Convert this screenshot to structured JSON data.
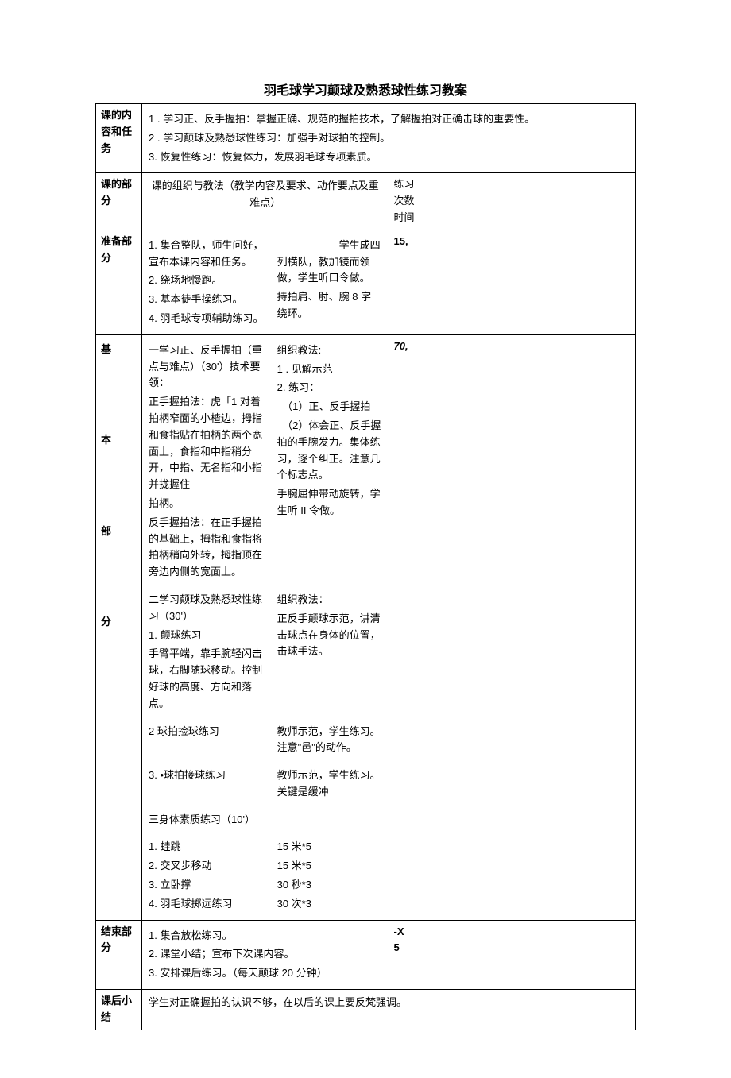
{
  "title": "羽毛球学习颠球及熟悉球性练习教案",
  "row_labels": {
    "task": "课的内容和任务",
    "part": "课的部分",
    "prep": "准备部分",
    "main": "基\n\n\n\n本\n\n\n\n部\n\n\n\n分",
    "end": "结束部分",
    "summary": "课后小结"
  },
  "header": {
    "center": "课的组织与教法（教学内容及要求、动作要点及重难点）",
    "right_lines": [
      "练习",
      "次数",
      "时间"
    ]
  },
  "task": {
    "lines": [
      "1           . 学习正、反手握拍：掌握正确、规范的握拍技术，了解握拍对正确击球的重要性。",
      "2 . 学习颠球及熟悉球性练习：加强手对球拍的控制。",
      "3. 恢复性练习：恢复体力，发展羽毛球专项素质。"
    ]
  },
  "prep": {
    "time": "15,",
    "left": [
      "1. 集合整队，师生问好，宣布本课内容和任务。",
      "2. 绕场地慢跑。",
      "3. 基本徒手操练习。",
      "",
      "4. 羽毛球专项辅助练习。"
    ],
    "right": [
      "",
      "",
      "　　　　　　学生成四列横队，教加镜而领做，学生听口令做。",
      "持拍肩、肘、腕 8 字绕环。"
    ]
  },
  "main": {
    "time": "70,",
    "blocks": [
      {
        "left": [
          "一学习正、反手握拍（重点与难点）（30'）技术要领：",
          "正手握拍法：虎「1 对着拍柄窄面的小楂边，拇指和食指贴在拍柄的两个宽面上，食指和中指稍分开，中指、无名指和小指并拢握住",
          "拍柄。",
          "反手握拍法：在正手握拍的基础上，拇指和食指将拍柄稍向外转，拇指顶在旁边内侧的宽面上。"
        ],
        "right": [
          "组织教法:",
          "1           . 见解示范",
          "2. 练习：",
          "　（1）正、反手握拍",
          "　（2）体会正、反手握拍的手腕发力。集体练习，逐个纠正。注意几个标志点。",
          "手腕屈伸带动旋转，学生听 II 令做。"
        ]
      },
      {
        "left": [
          "二学习颠球及熟悉球性练习（30'）",
          "1. 颠球练习",
          "手臂平端，靠手腕轻闪击球，右脚随球移动。控制好球的高度、方向和落点。"
        ],
        "right": [
          "组织教法：",
          "正反手颠球示范，讲清击球点在身体的位置，击球手法。"
        ]
      },
      {
        "left": [
          "2 球拍捡球练习"
        ],
        "right": [
          "教师示范，学生练习。注意\"邑\"的动作。"
        ]
      },
      {
        "left": [
          "3. •球拍接球练习"
        ],
        "right": [
          "教师示范，学生练习。关键是缓冲"
        ]
      },
      {
        "left": [
          "三身体素质练习（10'）"
        ],
        "right": [
          ""
        ]
      },
      {
        "left": [
          "1. 蛙跳",
          "2. 交叉步移动",
          "3. 立卧撑",
          "4. 羽毛球掷远练习"
        ],
        "right": [
          "15 米*5",
          "15 米*5",
          "30 秒*3",
          "30 次*3"
        ]
      }
    ]
  },
  "end": {
    "time_lines": [
      "-X",
      "5"
    ],
    "lines": [
      "1. 集合放松练习。",
      "2. 课堂小结；宣布下次课内容。",
      "3. 安排课后练习。（每天颠球 20 分钟）"
    ]
  },
  "summary": {
    "text": "学生对正确握拍的认识不够，在以后的课上要反梵强调。"
  }
}
